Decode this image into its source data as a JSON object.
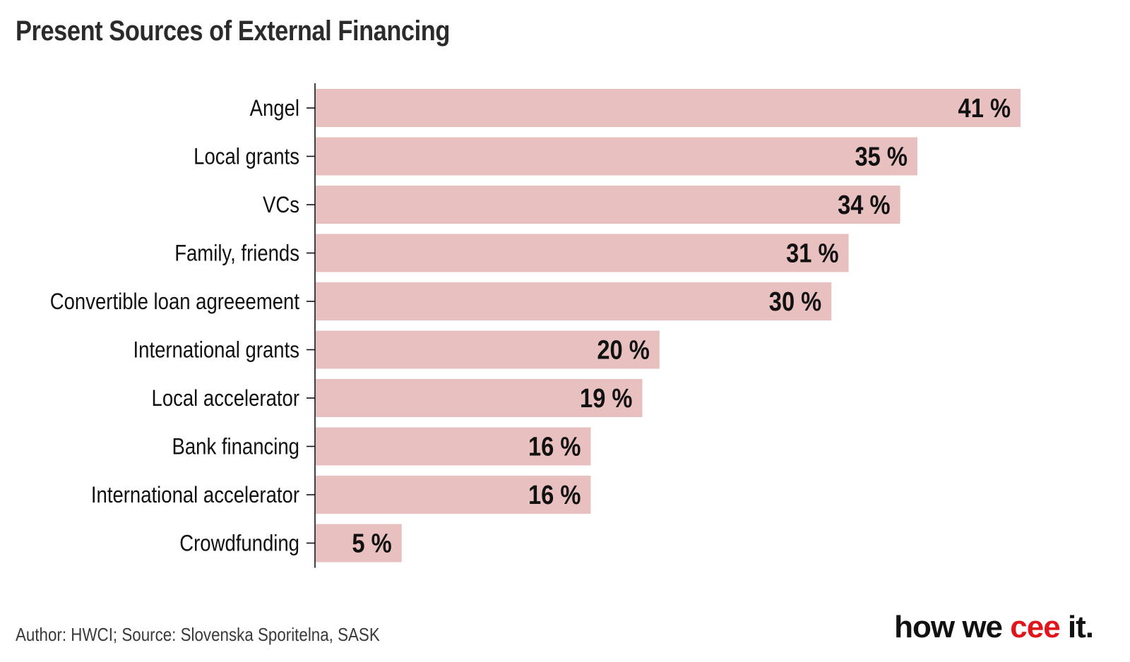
{
  "chart_data": {
    "type": "bar",
    "orientation": "horizontal",
    "title": "Present Sources of External Financing",
    "categories": [
      "Angel",
      "Local grants",
      "VCs",
      "Family, friends",
      "Convertible loan agreeement",
      "International grants",
      "Local accelerator",
      "Bank financing",
      "International accelerator",
      "Crowdfunding"
    ],
    "values": [
      41,
      35,
      34,
      31,
      30,
      20,
      19,
      16,
      16,
      5
    ],
    "value_suffix": " %",
    "xlim": [
      0,
      41
    ],
    "xlabel": "",
    "ylabel": "",
    "grid": false,
    "bar_color": "#e8c0bf"
  },
  "footer": {
    "source": "Author: HWCI; Source: Slovenska Sporitelna, SASK"
  },
  "brand": {
    "part1": "how we ",
    "part2": "cee",
    "part3": " it."
  },
  "colors": {
    "bar": "#e8c0bf",
    "accent": "#e0161c",
    "text": "#111111"
  }
}
